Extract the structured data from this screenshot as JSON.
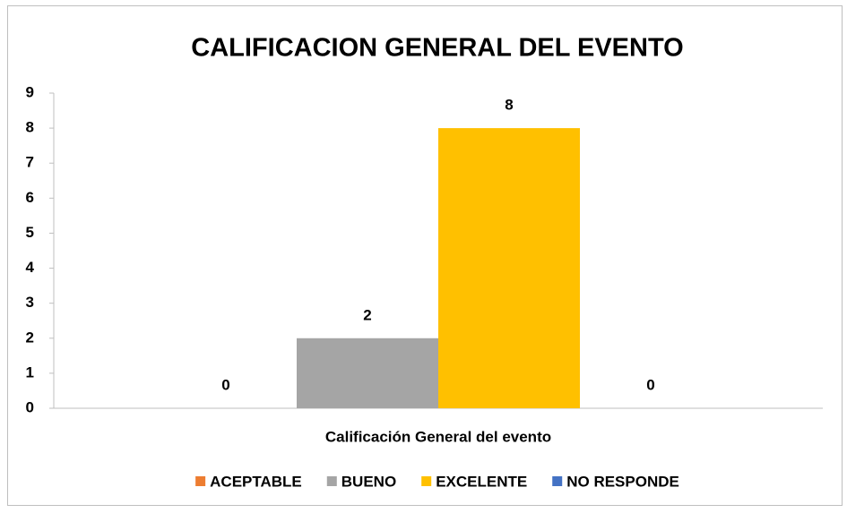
{
  "chart_data": {
    "type": "bar",
    "title": "CALIFICACION GENERAL DEL EVENTO",
    "categories": [
      "Calificación General del evento"
    ],
    "series": [
      {
        "name": "ACEPTABLE",
        "color": "#ed7d31",
        "values": [
          0
        ]
      },
      {
        "name": "BUENO",
        "color": "#a5a5a5",
        "values": [
          2
        ]
      },
      {
        "name": "EXCELENTE",
        "color": "#ffc000",
        "values": [
          8
        ]
      },
      {
        "name": "NO RESPONDE",
        "color": "#4472c4",
        "values": [
          0
        ]
      }
    ],
    "ylim": [
      0,
      9
    ],
    "yticks": [
      0,
      1,
      2,
      3,
      4,
      5,
      6,
      7,
      8,
      9
    ],
    "grid": false,
    "legend": "bottom"
  }
}
